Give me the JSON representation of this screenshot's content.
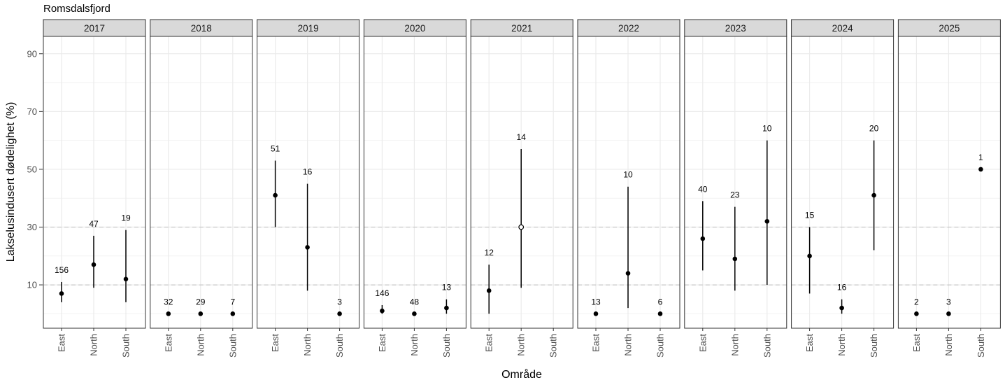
{
  "chart_data": {
    "type": "scatter",
    "title": "Romsdalsfjord",
    "xlabel": "Område",
    "ylabel": "Lakselusindusert dødelighet (%)",
    "ylim": [
      -5,
      96
    ],
    "yticks": [
      10,
      30,
      50,
      70,
      90
    ],
    "reference_lines": [
      10,
      30
    ],
    "categories": [
      "East",
      "North",
      "South"
    ],
    "facets": [
      {
        "label": "2017",
        "points": [
          {
            "x": "East",
            "y": 7,
            "low": 4,
            "high": 11,
            "n": "156"
          },
          {
            "x": "North",
            "y": 17,
            "low": 9,
            "high": 27,
            "n": "47"
          },
          {
            "x": "South",
            "y": 12,
            "low": 4,
            "high": 29,
            "n": "19"
          }
        ]
      },
      {
        "label": "2018",
        "points": [
          {
            "x": "East",
            "y": 0,
            "low": 0,
            "high": 0,
            "n": "32"
          },
          {
            "x": "North",
            "y": 0,
            "low": 0,
            "high": 0,
            "n": "29"
          },
          {
            "x": "South",
            "y": 0,
            "low": 0,
            "high": 0,
            "n": "7"
          }
        ]
      },
      {
        "label": "2019",
        "points": [
          {
            "x": "East",
            "y": 41,
            "low": 30,
            "high": 53,
            "n": "51"
          },
          {
            "x": "North",
            "y": 23,
            "low": 8,
            "high": 45,
            "n": "16"
          },
          {
            "x": "South",
            "y": 0,
            "low": 0,
            "high": 0,
            "n": "3"
          }
        ]
      },
      {
        "label": "2020",
        "points": [
          {
            "x": "East",
            "y": 1,
            "low": 0,
            "high": 3,
            "n": "146"
          },
          {
            "x": "North",
            "y": 0,
            "low": 0,
            "high": 0,
            "n": "48"
          },
          {
            "x": "South",
            "y": 2,
            "low": 0,
            "high": 5,
            "n": "13"
          }
        ]
      },
      {
        "label": "2021",
        "points": [
          {
            "x": "East",
            "y": 8,
            "low": 0,
            "high": 17,
            "n": "12"
          },
          {
            "x": "North",
            "y": 30,
            "low": 9,
            "high": 57,
            "n": "14",
            "open": true
          }
        ]
      },
      {
        "label": "2022",
        "points": [
          {
            "x": "East",
            "y": 0,
            "low": 0,
            "high": 0,
            "n": "13"
          },
          {
            "x": "North",
            "y": 14,
            "low": 2,
            "high": 44,
            "n": "10"
          },
          {
            "x": "South",
            "y": 0,
            "low": 0,
            "high": 0,
            "n": "6"
          }
        ]
      },
      {
        "label": "2023",
        "points": [
          {
            "x": "East",
            "y": 26,
            "low": 15,
            "high": 39,
            "n": "40"
          },
          {
            "x": "North",
            "y": 19,
            "low": 8,
            "high": 37,
            "n": "23"
          },
          {
            "x": "South",
            "y": 32,
            "low": 10,
            "high": 60,
            "n": "10"
          }
        ]
      },
      {
        "label": "2024",
        "points": [
          {
            "x": "East",
            "y": 20,
            "low": 7,
            "high": 30,
            "n": "15"
          },
          {
            "x": "North",
            "y": 2,
            "low": 0,
            "high": 5,
            "n": "16"
          },
          {
            "x": "South",
            "y": 41,
            "low": 22,
            "high": 60,
            "n": "20"
          }
        ]
      },
      {
        "label": "2025",
        "points": [
          {
            "x": "East",
            "y": 0,
            "low": 0,
            "high": 0,
            "n": "2"
          },
          {
            "x": "North",
            "y": 0,
            "low": 0,
            "high": 0,
            "n": "3"
          },
          {
            "x": "South",
            "y": 50,
            "low": 50,
            "high": 50,
            "n": "1"
          }
        ]
      }
    ],
    "grid": true,
    "legend": "none"
  }
}
